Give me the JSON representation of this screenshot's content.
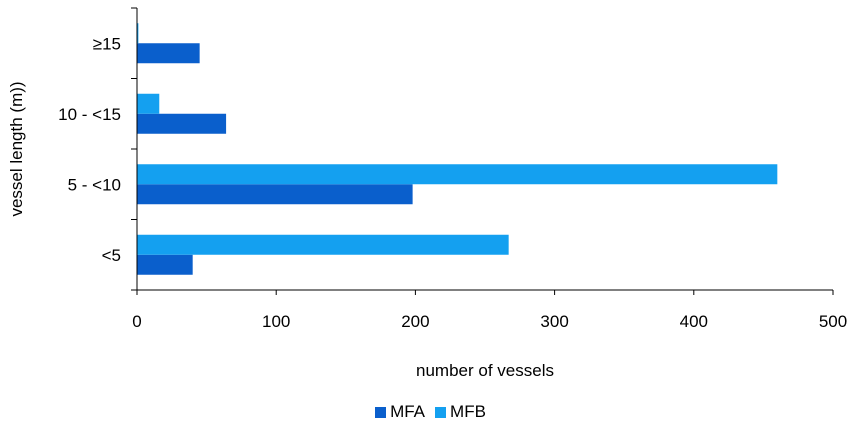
{
  "chart_data": {
    "type": "bar",
    "orientation": "horizontal",
    "categories": [
      "<5",
      "5 - <10",
      "10 - <15",
      "≥15"
    ],
    "series": [
      {
        "name": "MFA",
        "color": "#0a5fcc",
        "values": [
          40,
          198,
          64,
          45
        ]
      },
      {
        "name": "MFB",
        "color": "#14a0f0",
        "values": [
          267,
          460,
          16,
          1
        ]
      }
    ],
    "xlabel": "number of vessels",
    "ylabel": "vessel length (m))",
    "xlim": [
      0,
      500
    ],
    "xticks": [
      0,
      100,
      200,
      300,
      400,
      500
    ],
    "grid": false,
    "legend_position": "bottom"
  }
}
